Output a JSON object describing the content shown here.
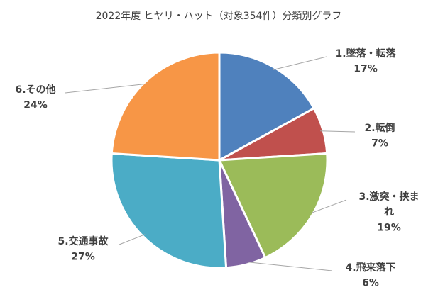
{
  "chart_data": {
    "type": "pie",
    "title": "2022年度 ヒヤリ・ハット（対象354件）分類別グラフ",
    "legend": "none",
    "slices": [
      {
        "name_lines": [
          "1.墜落・転落"
        ],
        "label": "17%",
        "value": 17,
        "color": "#4f81bd"
      },
      {
        "name_lines": [
          "2.転倒"
        ],
        "label": "7%",
        "value": 7,
        "color": "#c0504d"
      },
      {
        "name_lines": [
          "3.激突・挟ま",
          "れ"
        ],
        "label": "19%",
        "value": 19,
        "color": "#9bbb59"
      },
      {
        "name_lines": [
          "4.飛来落下"
        ],
        "label": "6%",
        "value": 6,
        "color": "#8064a2"
      },
      {
        "name_lines": [
          "5.交通事故"
        ],
        "label": "27%",
        "value": 27,
        "color": "#4bacc6"
      },
      {
        "name_lines": [
          "6.その他"
        ],
        "label": "24%",
        "value": 24,
        "color": "#f79646"
      }
    ]
  }
}
